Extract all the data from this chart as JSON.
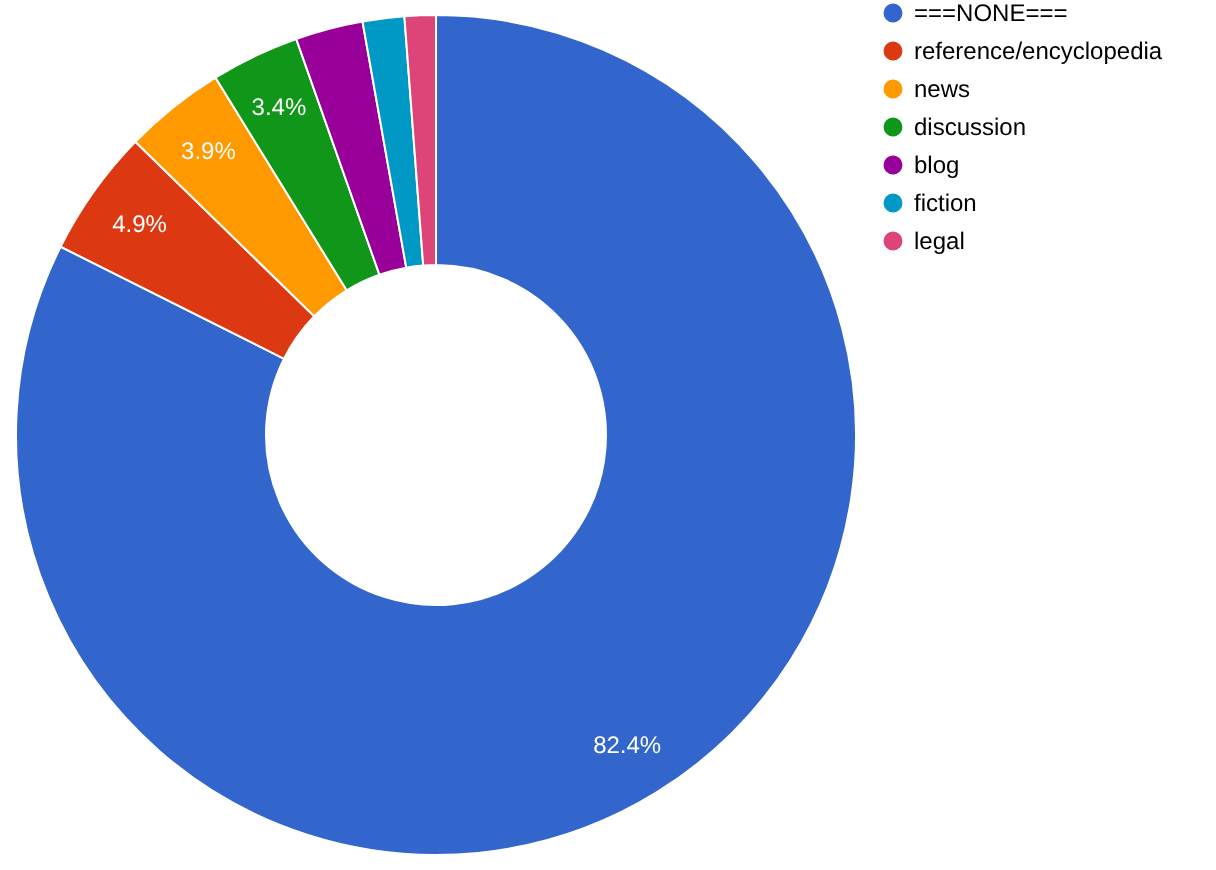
{
  "chart_data": {
    "type": "donut",
    "categories": [
      "===NONE===",
      "reference/encyclopedia",
      "news",
      "discussion",
      "blog",
      "fiction",
      "legal"
    ],
    "values": [
      82.4,
      4.9,
      3.9,
      3.4,
      2.6,
      1.6,
      1.2
    ],
    "colors": [
      "#3366cc",
      "#dc3912",
      "#ff9900",
      "#109618",
      "#990099",
      "#0099c6",
      "#dd4477"
    ],
    "value_labels": [
      "82.4%",
      "4.9%",
      "3.9%",
      "3.4%",
      null,
      null,
      null
    ],
    "legend": "top right"
  }
}
